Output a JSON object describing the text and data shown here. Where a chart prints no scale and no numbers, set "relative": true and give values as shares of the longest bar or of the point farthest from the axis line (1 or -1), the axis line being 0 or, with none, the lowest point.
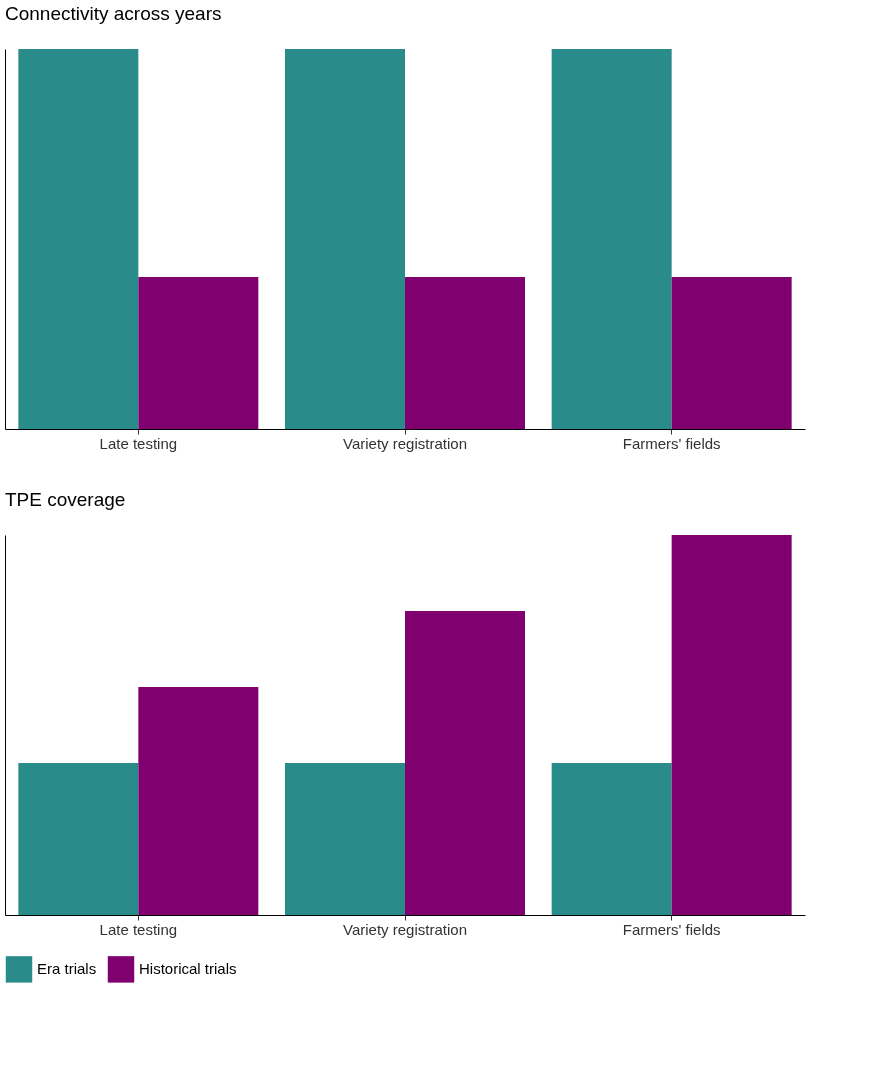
{
  "chart_data": [
    {
      "type": "bar",
      "title": "Connectivity across years",
      "relative": true,
      "legend": "bottom",
      "grid": false,
      "categories": [
        "Late testing",
        "Variety registration",
        "Farmers' fields"
      ],
      "series": [
        {
          "name": "Era trials",
          "color": "#2a8c8a",
          "values": [
            1,
            1,
            1
          ]
        },
        {
          "name": "Historical trials",
          "color": "#800070",
          "values": [
            0.4,
            0.4,
            0.4
          ]
        }
      ]
    },
    {
      "type": "bar",
      "title": "TPE coverage",
      "relative": true,
      "legend": "bottom",
      "grid": false,
      "categories": [
        "Late testing",
        "Variety registration",
        "Farmers' fields"
      ],
      "series": [
        {
          "name": "Era trials",
          "color": "#2a8c8a",
          "values": [
            0.4,
            0.4,
            0.4
          ]
        },
        {
          "name": "Historical trials",
          "color": "#800070",
          "values": [
            0.6,
            0.8,
            1
          ]
        }
      ]
    }
  ]
}
